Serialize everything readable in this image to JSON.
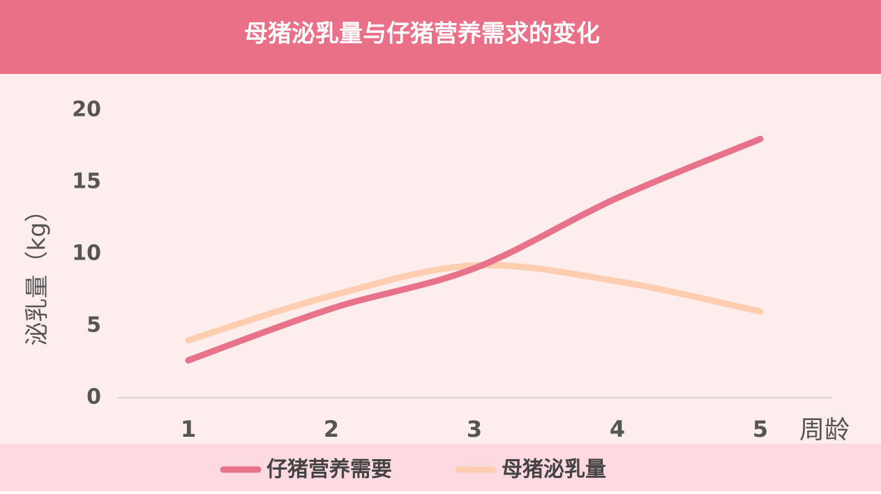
{
  "chart_data": {
    "type": "line",
    "title": "母猪泌乳量与仔猪营养需求的变化",
    "x_label": "周龄",
    "y_label": "泌乳量（kg）",
    "categories": [
      "1",
      "2",
      "3",
      "4",
      "5"
    ],
    "series": [
      {
        "name": "仔猪营养需要",
        "color": "#e8728a",
        "values": [
          2.6,
          6.2,
          9.0,
          13.9,
          18.0
        ]
      },
      {
        "name": "母猪泌乳量",
        "color": "#ffcdb0",
        "values": [
          4.0,
          7.1,
          9.2,
          8.1,
          6.0
        ]
      }
    ],
    "ylim": [
      0,
      20
    ],
    "yticks": [
      0,
      5,
      10,
      15,
      20
    ],
    "smooth": true
  }
}
